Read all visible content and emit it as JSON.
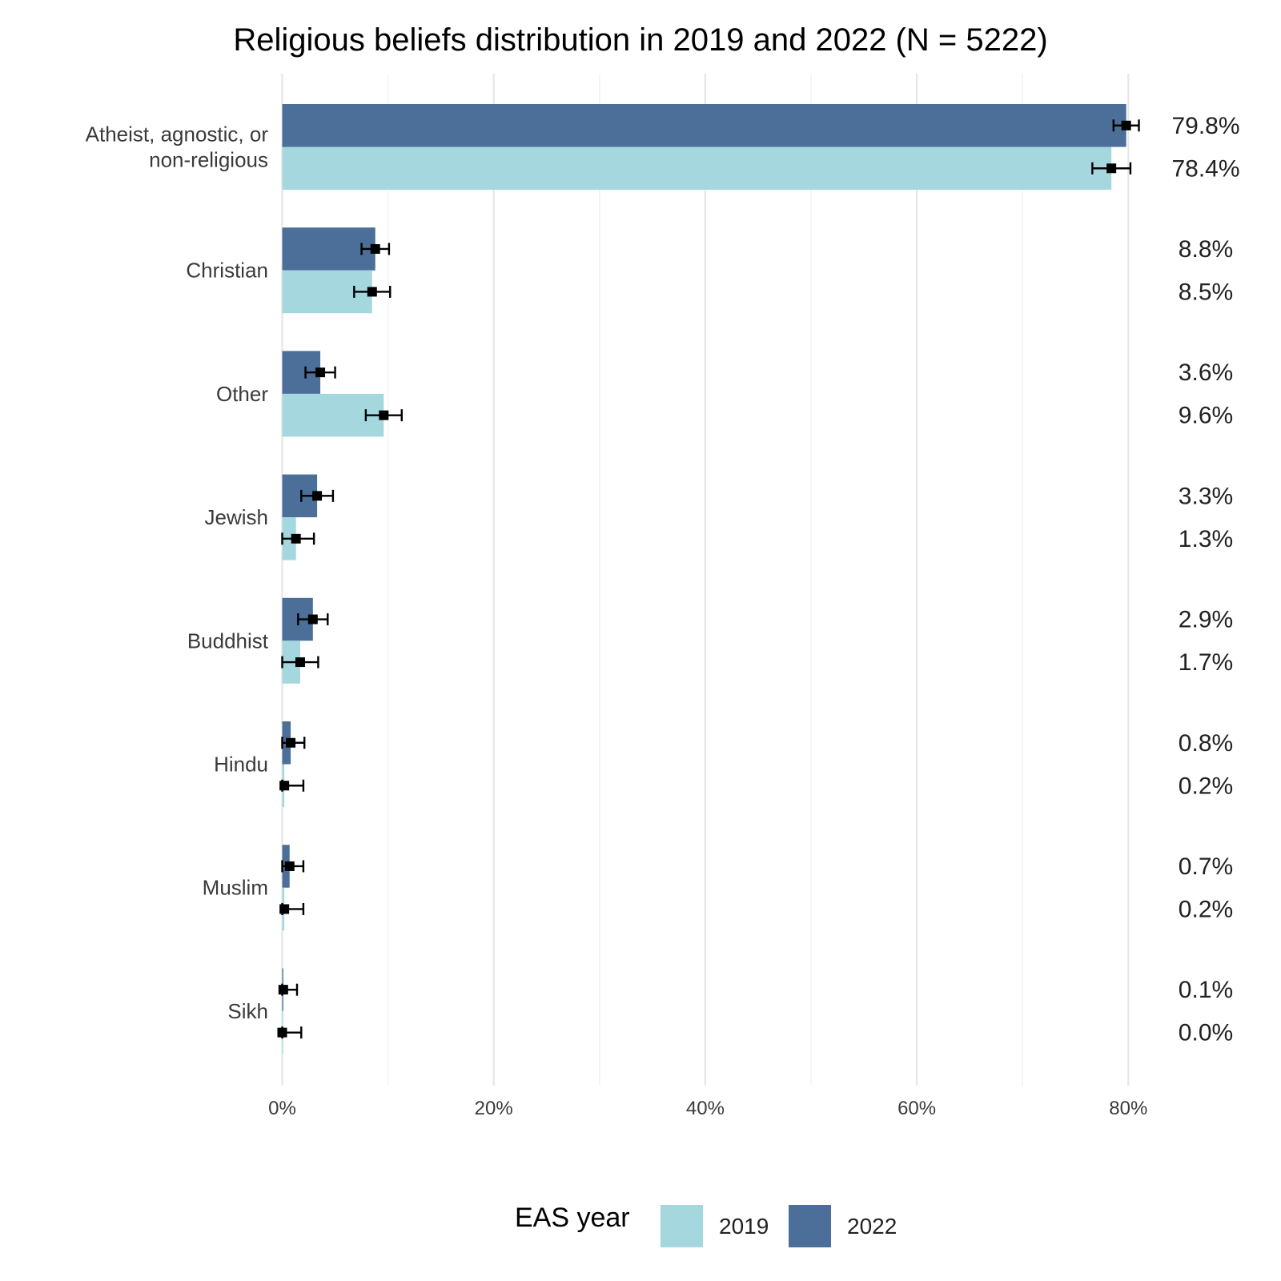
{
  "chart_data": {
    "type": "bar",
    "orientation": "horizontal",
    "title": "Religious beliefs distribution in 2019 and 2022 (N = 5222)",
    "xlabel": "",
    "ylabel": "",
    "xlim": [
      0,
      85
    ],
    "x_ticks": [
      0,
      20,
      40,
      60,
      80
    ],
    "x_tick_labels": [
      "0%",
      "20%",
      "40%",
      "60%",
      "80%"
    ],
    "grid": true,
    "legend": {
      "title": "EAS year",
      "placement": "bottom"
    },
    "categories": [
      "Atheist, agnostic, or non-religious",
      "Christian",
      "Other",
      "Jewish",
      "Buddhist",
      "Hindu",
      "Muslim",
      "Sikh"
    ],
    "category_display_lines": [
      [
        "Atheist, agnostic, or",
        "non-religious"
      ],
      [
        "Christian"
      ],
      [
        "Other"
      ],
      [
        "Jewish"
      ],
      [
        "Buddhist"
      ],
      [
        "Hindu"
      ],
      [
        "Muslim"
      ],
      [
        "Sikh"
      ]
    ],
    "series": [
      {
        "name": "2022",
        "color": "#4b6f98",
        "values": [
          79.8,
          8.8,
          3.6,
          3.3,
          2.9,
          0.8,
          0.7,
          0.1
        ],
        "value_labels": [
          "79.8%",
          "8.8%",
          "3.6%",
          "3.3%",
          "2.9%",
          "0.8%",
          "0.7%",
          "0.1%"
        ],
        "ci_low": [
          78.6,
          7.5,
          2.2,
          1.8,
          1.5,
          0.0,
          0.0,
          0.0
        ],
        "ci_high": [
          81.0,
          10.1,
          5.0,
          4.8,
          4.3,
          2.1,
          2.0,
          1.4
        ]
      },
      {
        "name": "2019",
        "color": "#a5d7df",
        "values": [
          78.4,
          8.5,
          9.6,
          1.3,
          1.7,
          0.2,
          0.2,
          0.0
        ],
        "value_labels": [
          "78.4%",
          "8.5%",
          "9.6%",
          "1.3%",
          "1.7%",
          "0.2%",
          "0.2%",
          "0.0%"
        ],
        "ci_low": [
          76.6,
          6.8,
          7.9,
          0.0,
          0.0,
          0.0,
          0.0,
          0.0
        ],
        "ci_high": [
          80.2,
          10.2,
          11.3,
          3.0,
          3.4,
          2.0,
          2.0,
          1.8
        ]
      }
    ],
    "legend_order": [
      "2019",
      "2022"
    ]
  }
}
